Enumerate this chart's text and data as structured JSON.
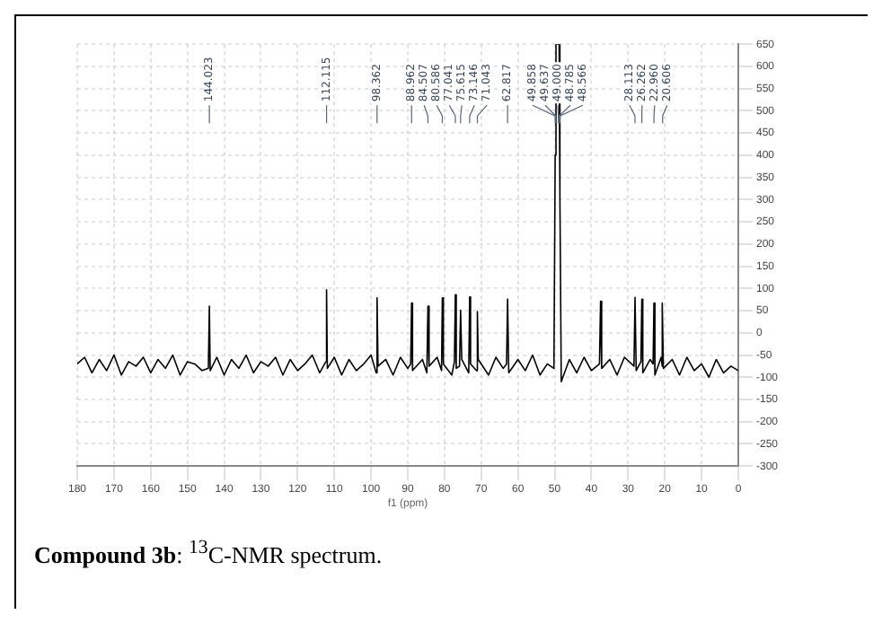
{
  "chart_data": {
    "type": "line",
    "xlabel": "f1 (ppm)",
    "xlim": [
      180,
      0
    ],
    "xticks": [
      180,
      170,
      160,
      150,
      140,
      130,
      120,
      110,
      100,
      90,
      80,
      70,
      60,
      50,
      40,
      30,
      20,
      10,
      0
    ],
    "ylim": [
      -300,
      650
    ],
    "yticks": [
      -300,
      -250,
      -200,
      -150,
      -100,
      -50,
      0,
      50,
      100,
      150,
      200,
      250,
      300,
      350,
      400,
      450,
      500,
      550,
      600,
      650
    ],
    "grid": true,
    "legend": false,
    "marker": "none",
    "line_style": "solid",
    "series": [
      {
        "color": "#000000",
        "x": [
          180,
          178,
          176,
          174,
          172,
          170,
          168,
          166,
          164,
          162,
          160,
          158,
          156,
          154,
          152,
          150,
          148,
          146,
          144.3,
          144.023,
          143.8,
          142,
          140,
          138,
          136,
          134,
          132,
          130,
          128,
          126,
          124,
          122,
          120,
          118,
          116,
          114,
          112.3,
          112.115,
          111.9,
          110,
          108,
          106,
          104,
          102,
          100,
          98.6,
          98.362,
          98.1,
          96,
          94,
          92,
          90,
          89.2,
          88.962,
          88.7,
          86,
          84.8,
          84.507,
          84.2,
          82,
          80.8,
          80.586,
          80.3,
          78,
          77.3,
          77.041,
          76.8,
          75.9,
          75.615,
          75.3,
          73.4,
          73.146,
          72.9,
          71.3,
          71.043,
          70.8,
          68,
          66,
          64,
          63.1,
          62.817,
          62.5,
          60,
          58,
          56,
          54,
          52,
          50.2,
          49.858,
          49.637,
          49.0,
          48.785,
          48.566,
          48.2,
          46,
          44,
          42,
          40,
          37.8,
          37.5,
          37.2,
          35,
          33,
          31,
          28.4,
          28.113,
          27.8,
          26.5,
          26.262,
          26.0,
          24,
          23.2,
          22.96,
          22.7,
          21,
          20.8,
          20.606,
          20.4,
          18,
          16,
          14,
          12,
          10,
          8,
          6,
          4,
          2,
          0
        ],
        "values": [
          -70,
          -55,
          -90,
          -60,
          -85,
          -50,
          -95,
          -65,
          -75,
          -55,
          -90,
          -60,
          -80,
          -50,
          -95,
          -65,
          -70,
          -85,
          -80,
          60,
          -85,
          -55,
          -95,
          -60,
          -80,
          -50,
          -90,
          -65,
          -75,
          -55,
          -95,
          -60,
          -85,
          -70,
          -50,
          -90,
          -65,
          97,
          -80,
          -55,
          -95,
          -60,
          -85,
          -70,
          -50,
          -90,
          79,
          -75,
          -60,
          -95,
          -55,
          -80,
          -70,
          67,
          -85,
          -60,
          -90,
          60,
          -75,
          -55,
          -85,
          79,
          -70,
          -95,
          -65,
          86,
          -80,
          -75,
          51,
          -60,
          -90,
          81,
          -70,
          -85,
          48,
          -60,
          -95,
          -55,
          -80,
          -70,
          76,
          -90,
          -60,
          -85,
          -50,
          -95,
          -70,
          -80,
          400,
          650,
          650,
          650,
          300,
          -110,
          -60,
          -90,
          -55,
          -85,
          -70,
          71,
          -80,
          -60,
          -95,
          -55,
          -75,
          80,
          -85,
          -65,
          76,
          -90,
          -60,
          -70,
          67,
          -95,
          -55,
          -75,
          67,
          -80,
          -60,
          -95,
          -55,
          -85,
          -70,
          -100,
          -60,
          -90,
          -75,
          -85
        ]
      }
    ],
    "annotations": [
      {
        "text": "144.023",
        "x": 144.023
      },
      {
        "text": "112.115",
        "x": 112.115
      },
      {
        "text": "98.362",
        "x": 98.362
      },
      {
        "text": "88.962",
        "x": 88.962
      },
      {
        "text": "84.507",
        "x": 84.507
      },
      {
        "text": "80.586",
        "x": 80.586
      },
      {
        "text": "77.041",
        "x": 77.041
      },
      {
        "text": "75.615",
        "x": 75.615
      },
      {
        "text": "73.146",
        "x": 73.146
      },
      {
        "text": "71.043",
        "x": 71.043
      },
      {
        "text": "62.817",
        "x": 62.817
      },
      {
        "text": "49.858",
        "x": 49.858
      },
      {
        "text": "49.637",
        "x": 49.637
      },
      {
        "text": "49.000",
        "x": 49.0
      },
      {
        "text": "48.785",
        "x": 48.785
      },
      {
        "text": "48.566",
        "x": 48.566
      },
      {
        "text": "28.113",
        "x": 28.113
      },
      {
        "text": "26.262",
        "x": 26.262
      },
      {
        "text": "22.960",
        "x": 22.96
      },
      {
        "text": "20.606",
        "x": 20.606
      },
      "Compound 3b: $^{13}$C-NMR spectrum."
    ]
  }
}
